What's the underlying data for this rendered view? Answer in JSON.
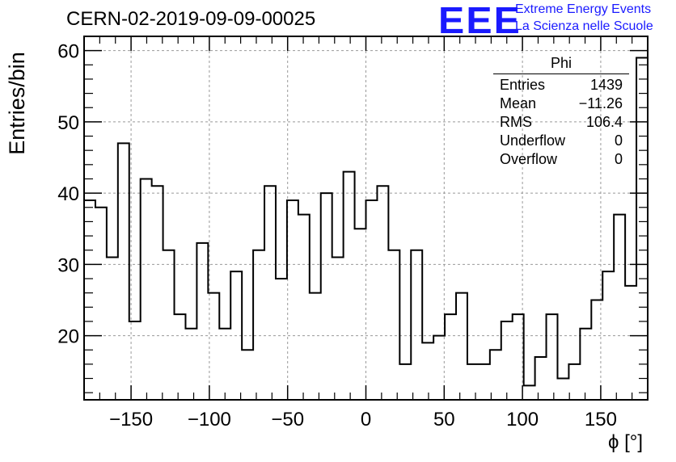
{
  "header": {
    "title": "CERN-02-2019-09-09-00025",
    "logo_text": "EEE",
    "logo_line1": "Extreme Energy Events",
    "logo_line2": "La Scienza nelle Scuole"
  },
  "stats_box": {
    "title": "Phi",
    "rows": [
      {
        "label": "Entries",
        "value": "1439"
      },
      {
        "label": "Mean",
        "value": "−11.26"
      },
      {
        "label": "RMS",
        "value": "106.4"
      },
      {
        "label": "Underflow",
        "value": "0"
      },
      {
        "label": "Overflow",
        "value": "0"
      }
    ]
  },
  "chart_data": {
    "type": "bar",
    "style": "step-histogram",
    "title": "CERN-02-2019-09-09-00025",
    "xlabel": "ϕ [°]",
    "ylabel": "Entries/bin",
    "xlim": [
      -180,
      180
    ],
    "ylim": [
      11,
      62
    ],
    "bin_width": 7.2,
    "x_ticks": [
      -150,
      -100,
      -50,
      0,
      50,
      100,
      150
    ],
    "x_tick_labels": [
      "−150",
      "−100",
      "−50",
      "0",
      "50",
      "100",
      "150"
    ],
    "y_ticks": [
      20,
      30,
      40,
      50,
      60
    ],
    "y_tick_labels": [
      "20",
      "30",
      "40",
      "50",
      "60"
    ],
    "grid": true,
    "values": [
      39,
      38,
      31,
      47,
      22,
      42,
      41,
      32,
      23,
      21,
      33,
      26,
      21,
      29,
      18,
      32,
      41,
      28,
      39,
      37,
      26,
      40,
      31,
      43,
      35,
      39,
      41,
      32,
      16,
      32,
      19,
      20,
      23,
      26,
      16,
      16,
      18,
      22,
      23,
      13,
      17,
      23,
      14,
      16,
      21,
      25,
      29,
      37,
      27,
      59
    ],
    "line_color": "#000000"
  }
}
